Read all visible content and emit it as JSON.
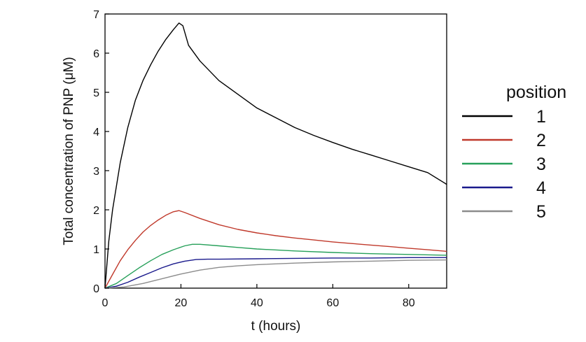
{
  "chart_data": {
    "type": "line",
    "title": "",
    "xlabel": "t (hours)",
    "ylabel": "Total concentration of PNP (μM)",
    "xlim": [
      0,
      90
    ],
    "ylim": [
      0,
      7
    ],
    "xticks": [
      0,
      20,
      40,
      60,
      80
    ],
    "yticks": [
      0,
      1,
      2,
      3,
      4,
      5,
      6,
      7
    ],
    "grid": false,
    "legend": {
      "title": "position",
      "placement": "right"
    },
    "series": [
      {
        "name": "1",
        "color": "#000000",
        "x": [
          0,
          1,
          2,
          4,
          6,
          8,
          10,
          12,
          14,
          16,
          18,
          19.5,
          20.5,
          22,
          25,
          30,
          35,
          40,
          45,
          50,
          55,
          60,
          65,
          70,
          75,
          80,
          85,
          90
        ],
        "y": [
          0,
          1.2,
          2.0,
          3.2,
          4.1,
          4.8,
          5.3,
          5.7,
          6.05,
          6.35,
          6.6,
          6.77,
          6.7,
          6.2,
          5.8,
          5.3,
          4.95,
          4.6,
          4.35,
          4.1,
          3.9,
          3.72,
          3.55,
          3.4,
          3.25,
          3.1,
          2.95,
          2.65
        ]
      },
      {
        "name": "2",
        "color": "#c0392b",
        "x": [
          0,
          2,
          4,
          6,
          8,
          10,
          12,
          14,
          16,
          18,
          19.5,
          21,
          25,
          30,
          35,
          40,
          45,
          50,
          55,
          60,
          65,
          70,
          75,
          80,
          85,
          90
        ],
        "y": [
          0,
          0.35,
          0.7,
          0.98,
          1.22,
          1.43,
          1.6,
          1.74,
          1.86,
          1.95,
          1.98,
          1.93,
          1.78,
          1.62,
          1.5,
          1.41,
          1.34,
          1.28,
          1.23,
          1.18,
          1.14,
          1.1,
          1.06,
          1.02,
          0.98,
          0.94
        ]
      },
      {
        "name": "3",
        "color": "#27a05a",
        "x": [
          0,
          3,
          6,
          9,
          12,
          15,
          18,
          21,
          23,
          25,
          30,
          35,
          40,
          50,
          60,
          70,
          80,
          90
        ],
        "y": [
          0,
          0.12,
          0.32,
          0.52,
          0.7,
          0.86,
          0.98,
          1.08,
          1.12,
          1.12,
          1.08,
          1.04,
          1.0,
          0.95,
          0.91,
          0.88,
          0.86,
          0.84
        ]
      },
      {
        "name": "4",
        "color": "#1a1a8c",
        "x": [
          0,
          3,
          6,
          9,
          12,
          15,
          18,
          21,
          24,
          27,
          30,
          40,
          50,
          60,
          70,
          80,
          90
        ],
        "y": [
          0,
          0.05,
          0.15,
          0.28,
          0.4,
          0.52,
          0.62,
          0.69,
          0.73,
          0.74,
          0.74,
          0.75,
          0.76,
          0.77,
          0.77,
          0.78,
          0.78
        ]
      },
      {
        "name": "5",
        "color": "#8c8c8c",
        "x": [
          0,
          5,
          10,
          15,
          20,
          25,
          30,
          35,
          40,
          50,
          60,
          70,
          80,
          90
        ],
        "y": [
          0,
          0.03,
          0.12,
          0.24,
          0.36,
          0.46,
          0.53,
          0.57,
          0.6,
          0.64,
          0.67,
          0.69,
          0.71,
          0.72
        ]
      }
    ]
  }
}
